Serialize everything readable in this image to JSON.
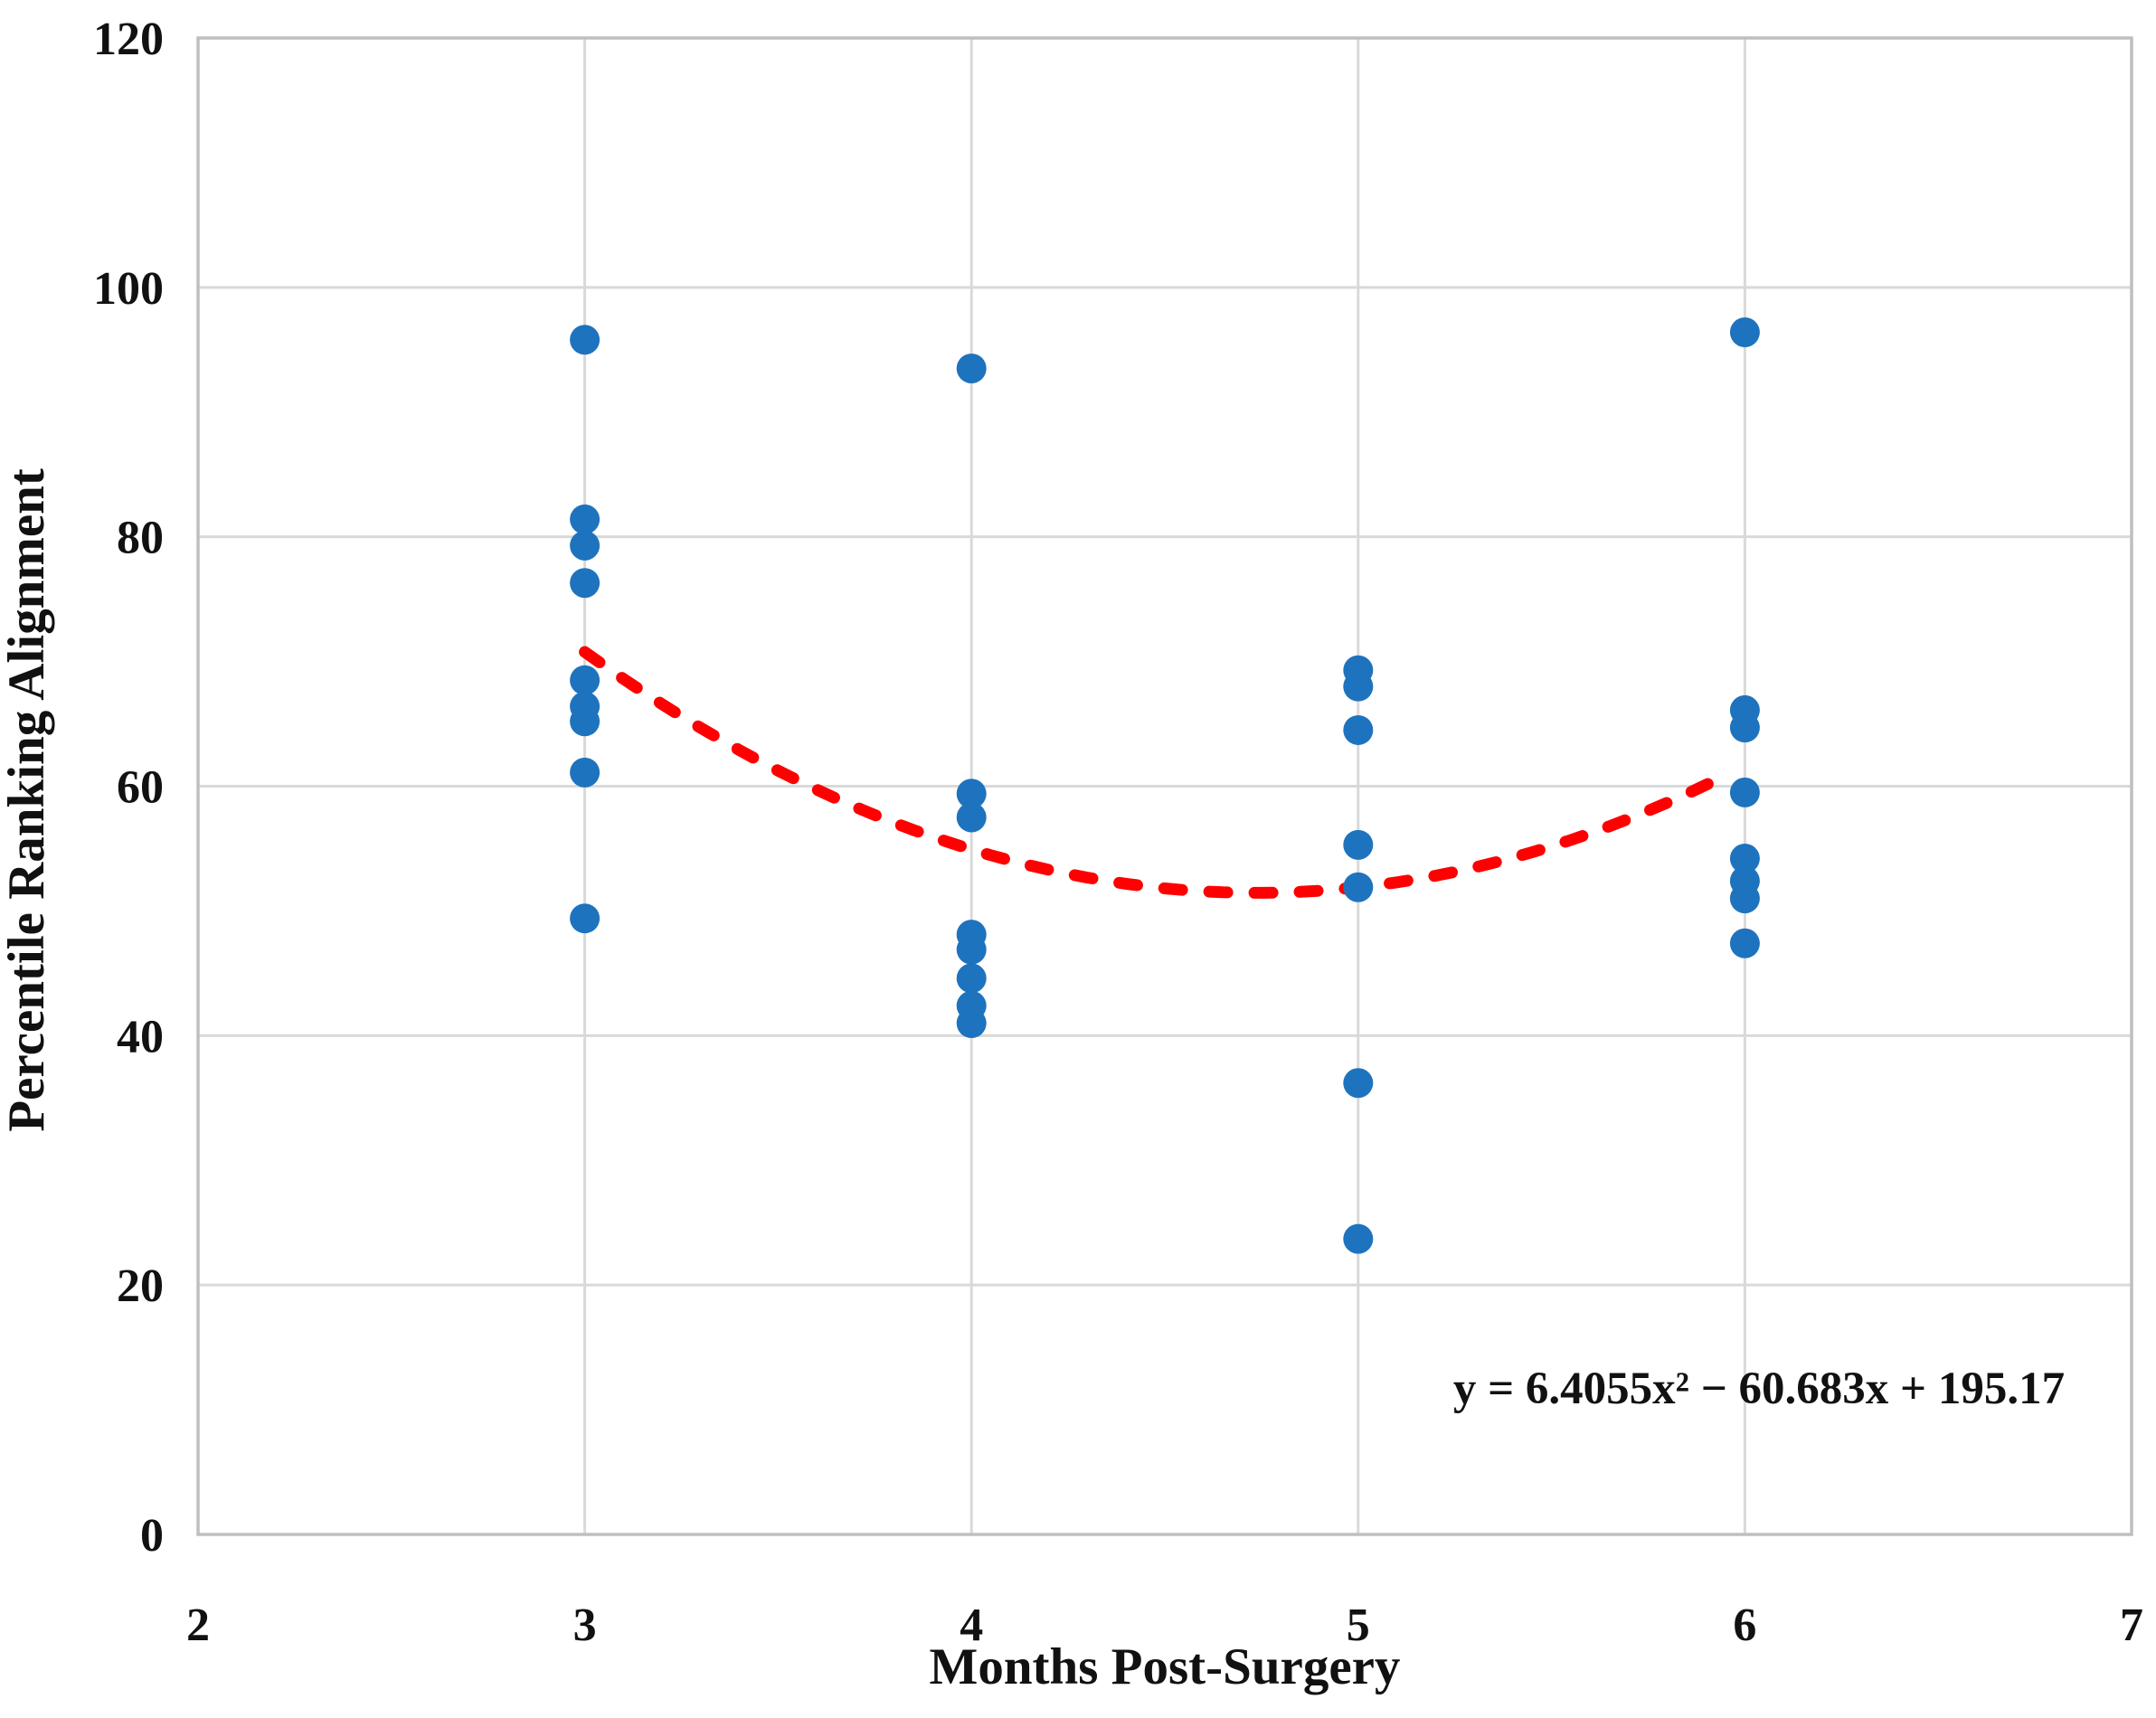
{
  "theme": {
    "background": "#ffffff",
    "point_color": "#1E73BE",
    "trend_color": "#FF0000",
    "grid_color": "#D9D9D9",
    "border_color": "#BFBFBF",
    "text_color": "#111111"
  },
  "chart_data": {
    "type": "scatter",
    "title": "",
    "xlabel": "Months Post-Surgery",
    "ylabel": "Percentile Ranking Alignment",
    "xlim": [
      2,
      7
    ],
    "ylim": [
      0,
      120
    ],
    "xticks": [
      2,
      3,
      4,
      5,
      6,
      7
    ],
    "yticks": [
      0,
      20,
      40,
      60,
      80,
      100,
      120
    ],
    "grid": true,
    "legend": "none",
    "series": [
      {
        "name": "Percentile Ranking Alignment",
        "color": "#1E73BE",
        "marker": "circle",
        "points": [
          [
            3,
            95.8
          ],
          [
            3,
            81.4
          ],
          [
            3,
            79.3
          ],
          [
            3,
            76.3
          ],
          [
            3,
            68.5
          ],
          [
            3,
            66.4
          ],
          [
            3,
            65.2
          ],
          [
            3,
            61.1
          ],
          [
            3,
            49.4
          ],
          [
            4,
            93.5
          ],
          [
            4,
            59.4
          ],
          [
            4,
            57.5
          ],
          [
            4,
            48.1
          ],
          [
            4,
            46.9
          ],
          [
            4,
            44.6
          ],
          [
            4,
            42.4
          ],
          [
            4,
            41.0
          ],
          [
            5,
            69.3
          ],
          [
            5,
            68.0
          ],
          [
            5,
            64.5
          ],
          [
            5,
            55.3
          ],
          [
            5,
            51.9
          ],
          [
            5,
            36.2
          ],
          [
            5,
            23.7
          ],
          [
            6,
            96.4
          ],
          [
            6,
            66.1
          ],
          [
            6,
            64.7
          ],
          [
            6,
            59.5
          ],
          [
            6,
            54.2
          ],
          [
            6,
            52.4
          ],
          [
            6,
            51.0
          ],
          [
            6,
            47.4
          ]
        ]
      }
    ],
    "trendline": {
      "type": "polynomial",
      "degree": 2,
      "a": 6.4055,
      "b": -60.683,
      "c": 195.17,
      "x_start": 3.0,
      "x_end": 5.95,
      "style": "dashed",
      "color": "#FF0000",
      "equation_label": "y = 6.4055x² − 60.683x + 195.17"
    }
  }
}
